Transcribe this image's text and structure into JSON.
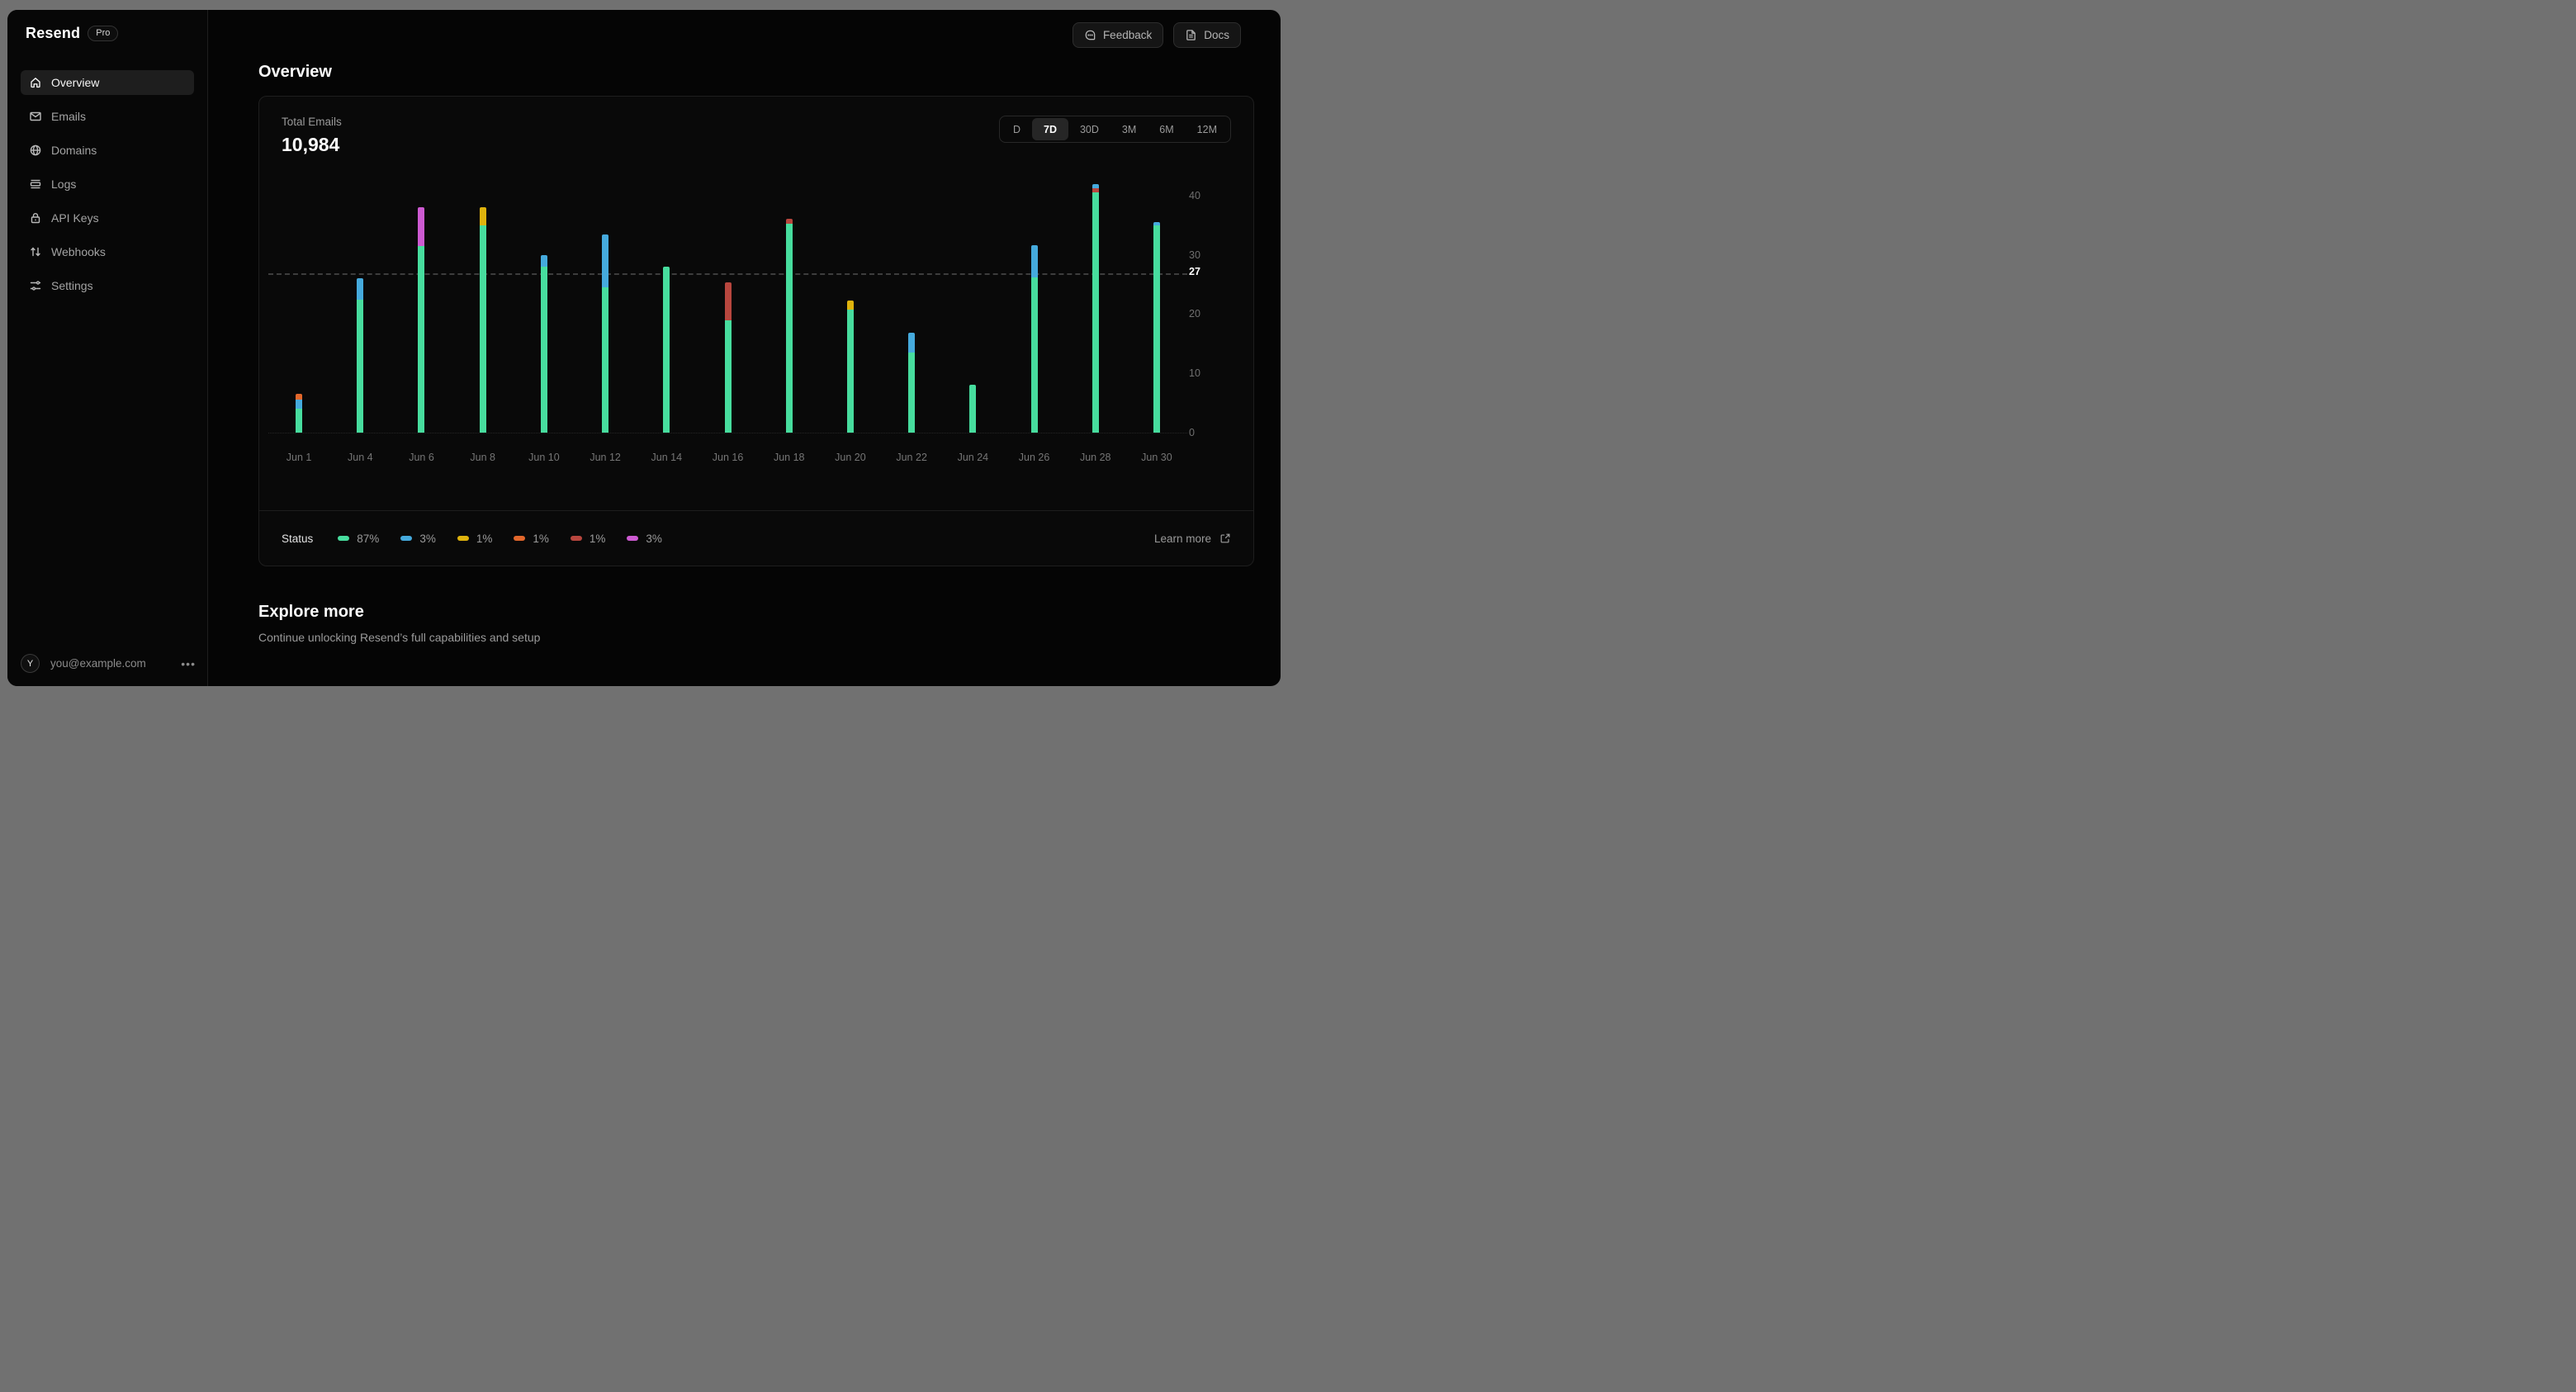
{
  "app": {
    "brand": "Resend",
    "plan_badge": "Pro"
  },
  "topbar": {
    "feedback": "Feedback",
    "docs": "Docs"
  },
  "sidebar": {
    "items": [
      {
        "label": "Overview",
        "icon": "home-icon",
        "active": true
      },
      {
        "label": "Emails",
        "icon": "envelope-icon",
        "active": false
      },
      {
        "label": "Domains",
        "icon": "globe-icon",
        "active": false
      },
      {
        "label": "Logs",
        "icon": "logs-icon",
        "active": false
      },
      {
        "label": "API Keys",
        "icon": "lock-icon",
        "active": false
      },
      {
        "label": "Webhooks",
        "icon": "arrows-up-down-icon",
        "active": false
      },
      {
        "label": "Settings",
        "icon": "sliders-icon",
        "active": false
      }
    ],
    "user": {
      "initial": "Y",
      "email": "you@example.com"
    }
  },
  "page": {
    "title": "Overview"
  },
  "card": {
    "metric_label": "Total Emails",
    "metric_value": "10,984",
    "ranges": [
      "D",
      "7D",
      "30D",
      "3M",
      "6M",
      "12M"
    ],
    "active_range": "7D",
    "learn_more": "Learn more"
  },
  "legend": {
    "title": "Status",
    "entries": [
      {
        "color": "green",
        "text": "87%"
      },
      {
        "color": "blue",
        "text": "3%"
      },
      {
        "color": "yellow",
        "text": "1%"
      },
      {
        "color": "orange",
        "text": "1%"
      },
      {
        "color": "red",
        "text": "1%"
      },
      {
        "color": "magenta",
        "text": "3%"
      }
    ]
  },
  "explore": {
    "title": "Explore more",
    "subtitle": "Continue unlocking Resend’s full capabilities and setup"
  },
  "colors": {
    "green": "#47dd9e",
    "blue": "#45aadd",
    "yellow": "#dfb30d",
    "orange": "#e2672b",
    "red": "#b8463e",
    "magenta": "#cd5ad1"
  },
  "chart_data": {
    "type": "bar",
    "subtype": "stacked",
    "title": "Total Emails",
    "total_label": "10,984",
    "categories": [
      "Jun 1",
      "Jun 4",
      "Jun 6",
      "Jun 8",
      "Jun 10",
      "Jun 12",
      "Jun 14",
      "Jun 16",
      "Jun 18",
      "Jun 20",
      "Jun 22",
      "Jun 24",
      "Jun 26",
      "Jun 28",
      "Jun 30"
    ],
    "ylim": [
      0,
      42.5
    ],
    "yticks": [
      0,
      10,
      20,
      30,
      40
    ],
    "reference_line": {
      "value": 27,
      "label": "27"
    },
    "legend_position": "bottom",
    "grid": false,
    "bars": [
      {
        "category": "Jun 1",
        "segments": [
          {
            "status": "green",
            "value": 4
          },
          {
            "status": "blue",
            "value": 1.6
          },
          {
            "status": "orange",
            "value": 1
          }
        ]
      },
      {
        "category": "Jun 4",
        "segments": [
          {
            "status": "green",
            "value": 22.5
          },
          {
            "status": "blue",
            "value": 3.5
          }
        ]
      },
      {
        "category": "Jun 6",
        "segments": [
          {
            "status": "green",
            "value": 31.5
          },
          {
            "status": "magenta",
            "value": 6.5
          }
        ]
      },
      {
        "category": "Jun 8",
        "segments": [
          {
            "status": "green",
            "value": 35
          },
          {
            "status": "yellow",
            "value": 3
          }
        ]
      },
      {
        "category": "Jun 10",
        "segments": [
          {
            "status": "green",
            "value": 28
          },
          {
            "status": "blue",
            "value": 2
          }
        ]
      },
      {
        "category": "Jun 12",
        "segments": [
          {
            "status": "green",
            "value": 24.5
          },
          {
            "status": "blue",
            "value": 9
          }
        ]
      },
      {
        "category": "Jun 14",
        "segments": [
          {
            "status": "green",
            "value": 28
          }
        ]
      },
      {
        "category": "Jun 16",
        "segments": [
          {
            "status": "green",
            "value": 19
          },
          {
            "status": "red",
            "value": 6.3
          }
        ]
      },
      {
        "category": "Jun 18",
        "segments": [
          {
            "status": "green",
            "value": 35.2
          },
          {
            "status": "red",
            "value": 0.9
          }
        ]
      },
      {
        "category": "Jun 20",
        "segments": [
          {
            "status": "green",
            "value": 20.7
          },
          {
            "status": "yellow",
            "value": 1.6
          }
        ]
      },
      {
        "category": "Jun 22",
        "segments": [
          {
            "status": "green",
            "value": 13.5
          },
          {
            "status": "blue",
            "value": 3.4
          }
        ]
      },
      {
        "category": "Jun 24",
        "segments": [
          {
            "status": "green",
            "value": 8.1
          }
        ]
      },
      {
        "category": "Jun 26",
        "segments": [
          {
            "status": "green",
            "value": 26.2
          },
          {
            "status": "blue",
            "value": 5.4
          }
        ]
      },
      {
        "category": "Jun 28",
        "segments": [
          {
            "status": "green",
            "value": 40.5
          },
          {
            "status": "red",
            "value": 0.8
          },
          {
            "status": "blue",
            "value": 0.6
          }
        ]
      },
      {
        "category": "Jun 30",
        "segments": [
          {
            "status": "green",
            "value": 35
          },
          {
            "status": "blue",
            "value": 0.6
          }
        ]
      }
    ]
  }
}
